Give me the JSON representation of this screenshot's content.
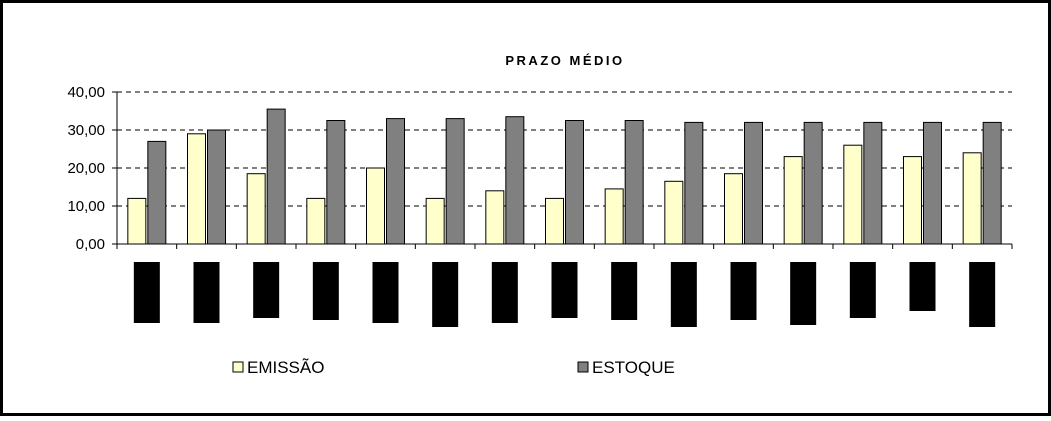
{
  "chart_data": {
    "type": "bar",
    "title": "PRAZO MÉDIO",
    "xlabel": "",
    "ylabel": "",
    "ylim": [
      0,
      40
    ],
    "yticks": [
      "0,00",
      "10,00",
      "20,00",
      "30,00",
      "40,00"
    ],
    "ytick_values": [
      0,
      10,
      20,
      30,
      40
    ],
    "grid": "horizontal dashed",
    "legend_position": "bottom",
    "categories": [
      "",
      "",
      "",
      "",
      "",
      "",
      "",
      "",
      "",
      "",
      "",
      "",
      "",
      "",
      ""
    ],
    "series": [
      {
        "name": "EMISSÃO",
        "color": "#ffffcc",
        "values": [
          12,
          29,
          18.5,
          12,
          20,
          12,
          14,
          12,
          14.5,
          16.5,
          18.5,
          23,
          26,
          23,
          24
        ]
      },
      {
        "name": "ESTOQUE",
        "color": "#808080",
        "values": [
          27,
          30,
          35.5,
          32.5,
          33,
          33,
          33.5,
          32.5,
          32.5,
          32,
          32,
          32,
          32,
          32,
          32
        ]
      }
    ],
    "colors": {
      "background": "#ffffff",
      "border": "#000000",
      "redaction": "#000000"
    }
  }
}
